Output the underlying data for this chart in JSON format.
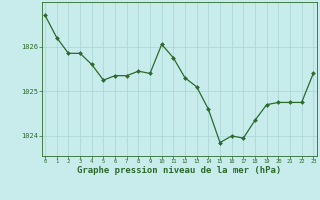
{
  "x": [
    0,
    1,
    2,
    3,
    4,
    5,
    6,
    7,
    8,
    9,
    10,
    11,
    12,
    13,
    14,
    15,
    16,
    17,
    18,
    19,
    20,
    21,
    22,
    23
  ],
  "y": [
    1026.7,
    1026.2,
    1025.85,
    1025.85,
    1025.6,
    1025.25,
    1025.35,
    1025.35,
    1025.45,
    1025.4,
    1026.05,
    1025.75,
    1025.3,
    1025.1,
    1024.6,
    1023.85,
    1024.0,
    1023.95,
    1024.35,
    1024.7,
    1024.75,
    1024.75,
    1024.75,
    1025.4
  ],
  "line_color": "#2d6a2d",
  "marker": "D",
  "marker_size": 2.0,
  "bg_color": "#c8ecec",
  "grid_color": "#a8d4d4",
  "border_color": "#2d6a2d",
  "xlabel": "Graphe pression niveau de la mer (hPa)",
  "xlabel_fontsize": 6.5,
  "xlabel_color": "#2d6a2d",
  "xtick_labels": [
    "0",
    "1",
    "2",
    "3",
    "4",
    "5",
    "6",
    "7",
    "8",
    "9",
    "10",
    "11",
    "12",
    "13",
    "14",
    "15",
    "16",
    "17",
    "18",
    "19",
    "20",
    "21",
    "22",
    "23"
  ],
  "ytick_labels": [
    "1024",
    "1025",
    "1026"
  ],
  "ytick_values": [
    1024,
    1025,
    1026
  ],
  "ylim": [
    1023.55,
    1027.0
  ],
  "xlim": [
    -0.3,
    23.3
  ]
}
